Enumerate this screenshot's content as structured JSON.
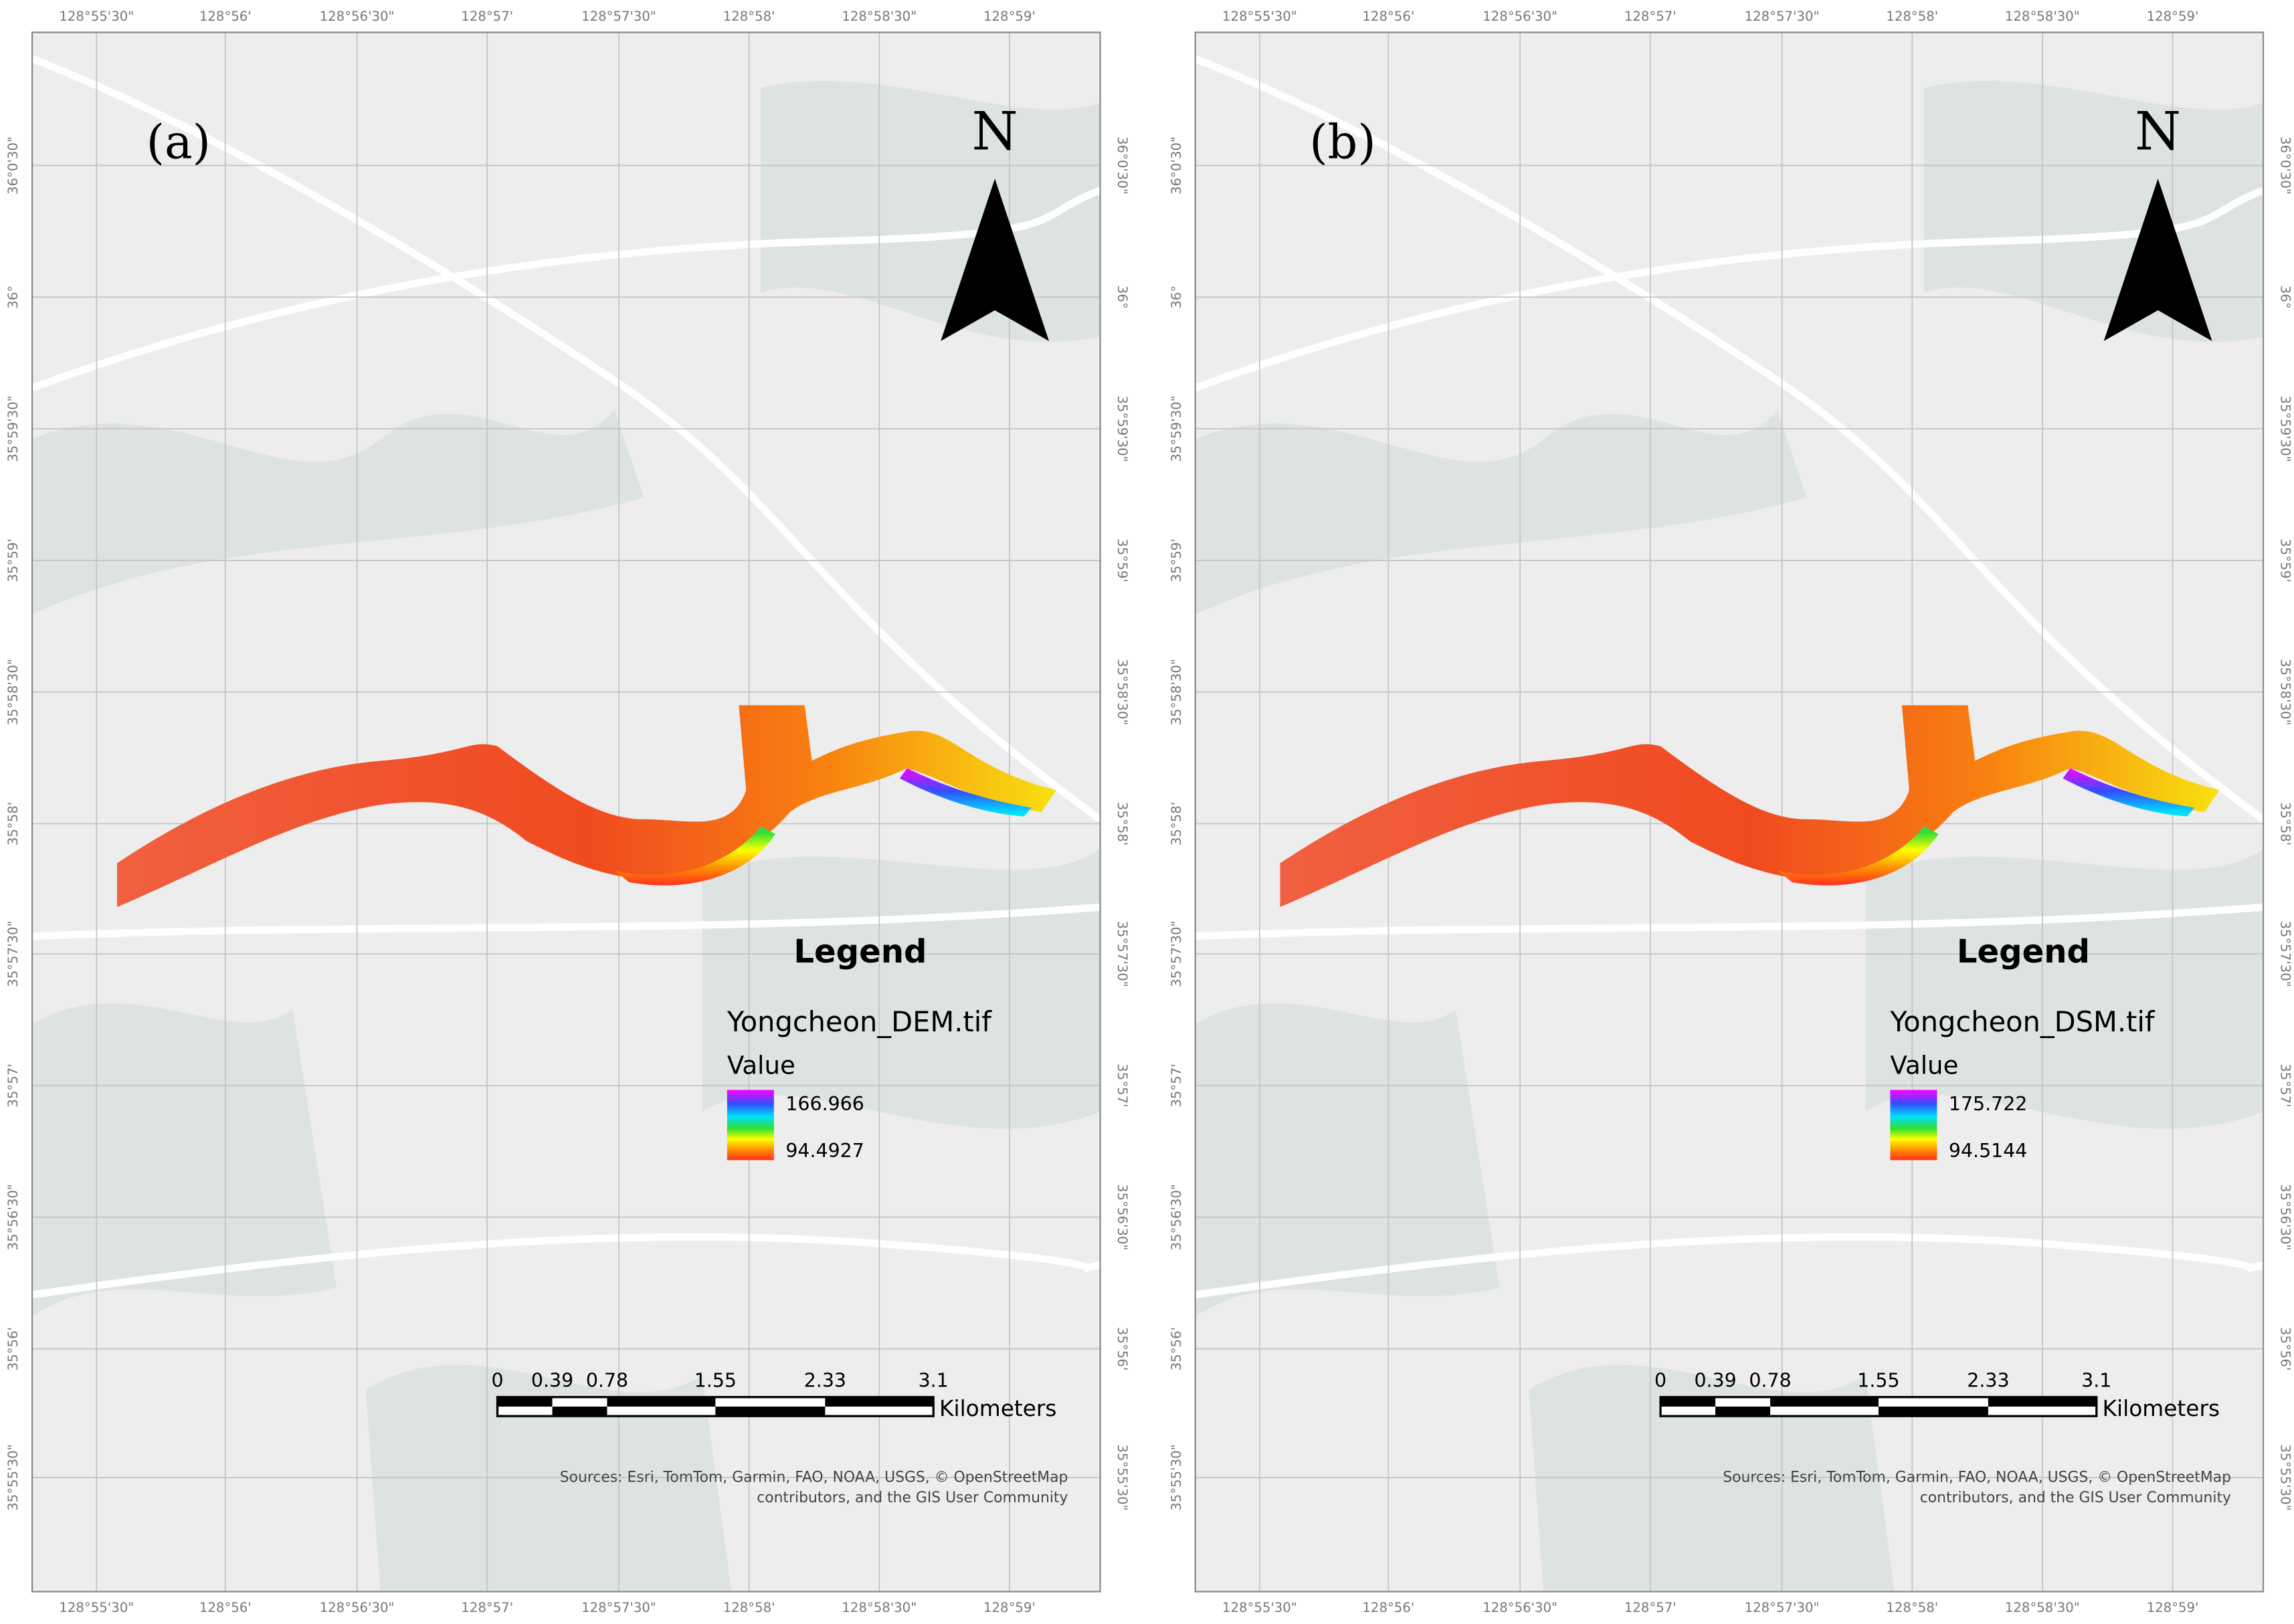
{
  "x_labels": [
    "128°55'30\"",
    "128°56'",
    "128°56'30\"",
    "128°57'",
    "128°57'30\"",
    "128°58'",
    "128°58'30\"",
    "128°59'"
  ],
  "y_labels": [
    "36°0'30\"",
    "36°",
    "35°59'30\"",
    "35°59'",
    "35°58'30\"",
    "35°58'",
    "35°57'30\"",
    "35°57'",
    "35°56'30\"",
    "35°56'",
    "35°55'30\""
  ],
  "panels": [
    {
      "label": "(a)",
      "north": "N",
      "legend": {
        "title": "Legend",
        "layer": "Yongcheon_DEM.tif",
        "field": "Value",
        "max": 166.966,
        "min": 94.4927
      },
      "scale_bar": {
        "ticks": [
          0,
          0.39,
          0.78,
          1.55,
          2.33,
          3.1
        ],
        "unit": "Kilometers"
      },
      "sources": [
        "Sources: Esri, TomTom, Garmin, FAO, NOAA, USGS, © OpenStreetMap",
        "contributors, and the GIS User Community"
      ]
    },
    {
      "label": "(b)",
      "north": "N",
      "legend": {
        "title": "Legend",
        "layer": "Yongcheon_DSM.tif",
        "field": "Value",
        "max": 175.722,
        "min": 94.5144
      },
      "scale_bar": {
        "ticks": [
          0,
          0.39,
          0.78,
          1.55,
          2.33,
          3.1
        ],
        "unit": "Kilometers"
      },
      "sources": [
        "Sources: Esri, TomTom, Garmin, FAO, NOAA, USGS, © OpenStreetMap",
        "contributors, and the GIS User Community"
      ]
    }
  ]
}
